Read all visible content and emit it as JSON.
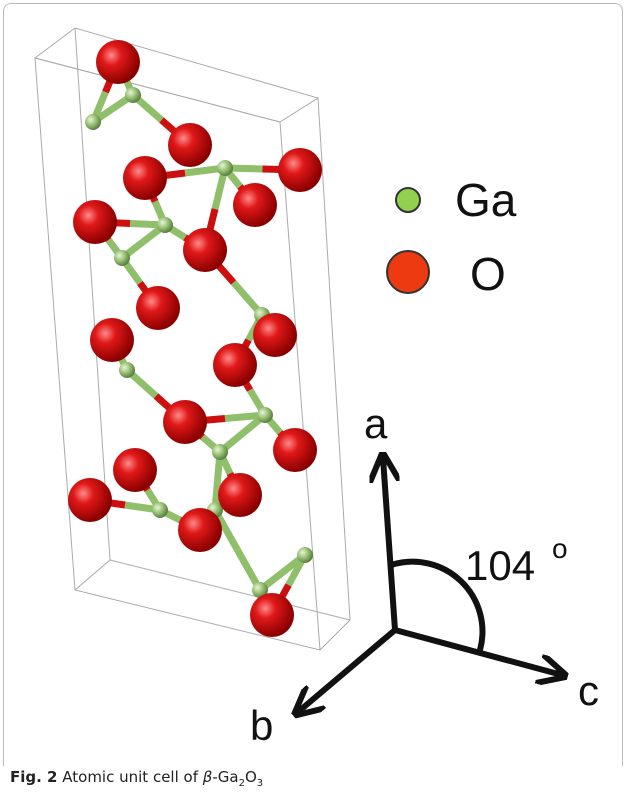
{
  "legend": [
    {
      "label": "Ga"
    },
    {
      "label": "O"
    }
  ],
  "axes": {
    "a": "a",
    "b": "b",
    "c": "c",
    "angle": "104",
    "angle_unit": "o"
  },
  "caption": {
    "label": "Fig. 2",
    "text": "Atomic unit cell of",
    "symbol": "β",
    "formula": [
      "-Ga",
      "2",
      "O",
      "3"
    ]
  }
}
